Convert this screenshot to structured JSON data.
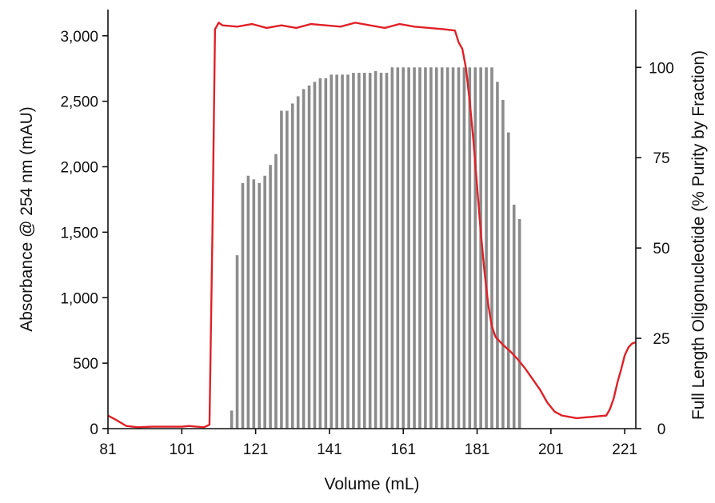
{
  "chart_data": {
    "type": "bar+line",
    "title": "",
    "xlabel": "Volume (mL)",
    "ylabel_left": "Absorbance @ 254 nm (mAU)",
    "ylabel_right": "Full Length Oligonucleotide (% Purity by Fraction)",
    "xlim": [
      81,
      224
    ],
    "ylim_left": [
      0,
      3200
    ],
    "ylim_right": [
      0,
      116
    ],
    "x_ticks": [
      "81",
      "101",
      "121",
      "141",
      "161",
      "181",
      "201",
      "221"
    ],
    "y_left_ticks": [
      "0",
      "500",
      "1,000",
      "1,500",
      "2,000",
      "2,500",
      "3,000"
    ],
    "y_right_ticks": [
      "0",
      "25",
      "50",
      "75",
      "100"
    ],
    "grid": false,
    "legend": "none",
    "colors": {
      "line": "#e02027",
      "bars": "#8c8c8c",
      "axes": "#111111"
    },
    "series": [
      {
        "type": "bar",
        "axis": "right",
        "x": [
          114.5,
          116,
          117.5,
          119,
          120.5,
          122,
          123.5,
          125,
          126.5,
          128,
          129.5,
          131,
          132.5,
          134,
          135.5,
          137,
          138.5,
          140,
          141.5,
          143,
          144.5,
          146,
          147.5,
          149,
          150.5,
          152,
          153.5,
          155,
          156.5,
          158,
          159.5,
          161,
          162.5,
          164,
          165.5,
          167,
          168.5,
          170,
          171.5,
          173,
          174.5,
          176,
          177.5,
          179,
          180.5,
          182,
          183.5,
          185,
          186.5,
          188,
          189.5,
          191,
          192.5
        ],
        "values": [
          5,
          48,
          68,
          70,
          69,
          68,
          70,
          73,
          76,
          88,
          88,
          90,
          92,
          94,
          95,
          96,
          97,
          97,
          98,
          98,
          98,
          98,
          98.5,
          98.5,
          98.5,
          98.5,
          99,
          98.5,
          98.5,
          100,
          100,
          100,
          100,
          100,
          100,
          100,
          100,
          100,
          100,
          100,
          100,
          100,
          100,
          100,
          100,
          100,
          100,
          100,
          96,
          91,
          82,
          62,
          58
        ]
      },
      {
        "type": "line",
        "axis": "left",
        "x": [
          81,
          83,
          86,
          89,
          93,
          97,
          101,
          103,
          105,
          107,
          108.5,
          109.3,
          110,
          111,
          112,
          116,
          120,
          124,
          128,
          132,
          136,
          140,
          144,
          148,
          152,
          156,
          160,
          164,
          168,
          172,
          175,
          176,
          177,
          178,
          179,
          180,
          181,
          182,
          183,
          184,
          185,
          186,
          188,
          190,
          192,
          194,
          196,
          198,
          200,
          202,
          204,
          206,
          208,
          210,
          212,
          214,
          216,
          217,
          218,
          219,
          220,
          221,
          222,
          223,
          224
        ],
        "values": [
          100,
          70,
          20,
          10,
          15,
          15,
          15,
          20,
          15,
          10,
          30,
          1500,
          3050,
          3100,
          3080,
          3070,
          3090,
          3060,
          3080,
          3060,
          3090,
          3080,
          3070,
          3100,
          3080,
          3060,
          3090,
          3070,
          3060,
          3050,
          3040,
          2950,
          2900,
          2750,
          2500,
          2200,
          1850,
          1500,
          1200,
          950,
          780,
          700,
          640,
          590,
          530,
          460,
          380,
          300,
          200,
          130,
          100,
          90,
          80,
          85,
          90,
          95,
          100,
          150,
          230,
          350,
          450,
          560,
          620,
          650,
          660
        ]
      }
    ]
  }
}
